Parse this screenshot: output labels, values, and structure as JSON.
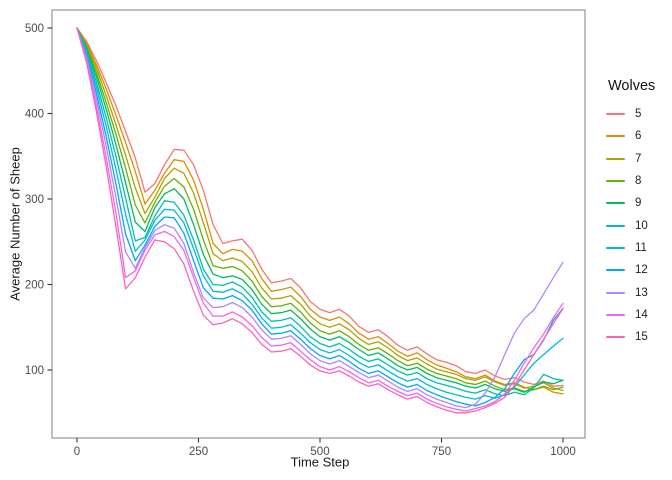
{
  "chart_data": {
    "type": "line",
    "title": "",
    "xlabel": "Time Step",
    "ylabel": "Average Number of Sheep",
    "legend_title": "Wolves",
    "legend_position": "right",
    "grid": false,
    "panel_border": true,
    "xlim": [
      -51,
      1045
    ],
    "ylim": [
      20,
      521
    ],
    "x_ticks": [
      0,
      250,
      500,
      750,
      1000
    ],
    "y_ticks": [
      100,
      200,
      300,
      400,
      500
    ],
    "axis_text_color": "#4c4c4c",
    "axis_title_color": "#1a1a1a",
    "panel_border_color": "#8c8c8c",
    "tick_color": "#333333",
    "x": [
      0,
      20,
      40,
      60,
      80,
      100,
      120,
      140,
      160,
      180,
      200,
      220,
      240,
      260,
      280,
      300,
      320,
      340,
      360,
      380,
      400,
      420,
      440,
      460,
      480,
      500,
      520,
      540,
      560,
      580,
      600,
      620,
      640,
      660,
      680,
      700,
      720,
      740,
      760,
      780,
      800,
      820,
      840,
      860,
      880,
      900,
      920,
      940,
      960,
      980,
      1000
    ],
    "series": [
      {
        "name": "5",
        "color": "#F8766D",
        "values": [
          500,
          484,
          462,
          436,
          409,
          379,
          348,
          308,
          318,
          340,
          358,
          357,
          340,
          310,
          270,
          248,
          251,
          253,
          240,
          218,
          202,
          204,
          207,
          196,
          180,
          171,
          167,
          171,
          163,
          151,
          144,
          147,
          139,
          129,
          123,
          127,
          119,
          112,
          109,
          105,
          98,
          96,
          100,
          93,
          89,
          91,
          86,
          83,
          87,
          81,
          82
        ]
      },
      {
        "name": "6",
        "color": "#DB8E00",
        "values": [
          500,
          482,
          457,
          429,
          398,
          366,
          332,
          294,
          310,
          330,
          346,
          344,
          322,
          288,
          248,
          236,
          241,
          239,
          228,
          207,
          192,
          194,
          197,
          186,
          171,
          162,
          158,
          162,
          154,
          143,
          136,
          139,
          131,
          122,
          116,
          120,
          112,
          106,
          102,
          98,
          92,
          90,
          94,
          87,
          83,
          85,
          80,
          77,
          80,
          74,
          72
        ]
      },
      {
        "name": "7",
        "color": "#AEA200",
        "values": [
          500,
          480,
          453,
          421,
          387,
          351,
          313,
          283,
          302,
          324,
          336,
          330,
          307,
          272,
          236,
          228,
          231,
          227,
          215,
          196,
          183,
          184,
          187,
          177,
          163,
          154,
          150,
          154,
          147,
          137,
          130,
          133,
          126,
          117,
          111,
          114,
          107,
          101,
          98,
          95,
          90,
          88,
          92,
          86,
          82,
          84,
          79,
          81,
          85,
          79,
          76
        ]
      },
      {
        "name": "8",
        "color": "#64B200",
        "values": [
          500,
          478,
          448,
          413,
          376,
          336,
          293,
          272,
          296,
          315,
          324,
          314,
          288,
          252,
          222,
          219,
          221,
          216,
          204,
          186,
          174,
          175,
          178,
          168,
          155,
          146,
          142,
          146,
          139,
          130,
          123,
          126,
          119,
          111,
          105,
          108,
          101,
          96,
          93,
          90,
          85,
          83,
          87,
          81,
          77,
          79,
          75,
          77,
          81,
          77,
          80
        ]
      },
      {
        "name": "9",
        "color": "#00BD5C",
        "values": [
          500,
          476,
          443,
          405,
          364,
          319,
          273,
          262,
          290,
          306,
          312,
          300,
          270,
          235,
          212,
          208,
          210,
          206,
          194,
          177,
          166,
          167,
          170,
          160,
          148,
          139,
          135,
          139,
          132,
          124,
          117,
          120,
          113,
          105,
          100,
          103,
          96,
          91,
          88,
          85,
          81,
          79,
          83,
          78,
          75,
          78,
          74,
          80,
          86,
          84,
          88
        ]
      },
      {
        "name": "10",
        "color": "#00C1A7",
        "values": [
          500,
          474,
          437,
          395,
          350,
          301,
          251,
          255,
          280,
          298,
          296,
          281,
          252,
          218,
          200,
          199,
          203,
          197,
          185,
          168,
          157,
          158,
          161,
          151,
          139,
          131,
          127,
          131,
          124,
          116,
          110,
          113,
          106,
          99,
          94,
          97,
          90,
          85,
          82,
          79,
          75,
          73,
          77,
          72,
          70,
          74,
          71,
          79,
          95,
          90,
          88
        ]
      },
      {
        "name": "11",
        "color": "#00BADE",
        "values": [
          500,
          471,
          431,
          385,
          335,
          282,
          239,
          252,
          275,
          288,
          287,
          272,
          242,
          210,
          192,
          191,
          195,
          189,
          177,
          161,
          149,
          150,
          153,
          143,
          132,
          124,
          120,
          124,
          117,
          109,
          103,
          106,
          99,
          92,
          87,
          90,
          83,
          78,
          74,
          71,
          68,
          66,
          70,
          67,
          71,
          80,
          94,
          108,
          118,
          128,
          137
        ]
      },
      {
        "name": "12",
        "color": "#00A6FF",
        "values": [
          500,
          468,
          424,
          373,
          318,
          259,
          228,
          246,
          268,
          279,
          278,
          260,
          228,
          196,
          184,
          183,
          187,
          181,
          170,
          154,
          142,
          143,
          146,
          136,
          125,
          117,
          113,
          117,
          110,
          102,
          96,
          99,
          92,
          85,
          80,
          83,
          76,
          71,
          67,
          63,
          60,
          58,
          62,
          68,
          78,
          96,
          112,
          118,
          135,
          158,
          172
        ]
      },
      {
        "name": "13",
        "color": "#B385FF",
        "values": [
          500,
          465,
          417,
          362,
          302,
          238,
          219,
          243,
          263,
          270,
          266,
          248,
          214,
          184,
          173,
          174,
          179,
          173,
          162,
          147,
          136,
          137,
          140,
          130,
          119,
          111,
          107,
          111,
          104,
          97,
          91,
          94,
          87,
          80,
          75,
          78,
          71,
          66,
          62,
          58,
          56,
          60,
          73,
          92,
          118,
          143,
          160,
          170,
          189,
          208,
          226
        ]
      },
      {
        "name": "14",
        "color": "#EF67EB",
        "values": [
          500,
          462,
          409,
          349,
          284,
          208,
          216,
          240,
          258,
          262,
          256,
          240,
          208,
          178,
          163,
          163,
          168,
          162,
          152,
          138,
          128,
          129,
          132,
          122,
          112,
          104,
          100,
          104,
          98,
          91,
          85,
          88,
          81,
          75,
          70,
          73,
          66,
          61,
          57,
          54,
          52,
          55,
          58,
          63,
          72,
          88,
          108,
          126,
          142,
          161,
          178
        ]
      },
      {
        "name": "15",
        "color": "#FF63B6",
        "values": [
          500,
          459,
          402,
          338,
          268,
          195,
          208,
          232,
          252,
          250,
          242,
          224,
          192,
          164,
          153,
          155,
          160,
          154,
          144,
          130,
          121,
          122,
          125,
          116,
          106,
          99,
          96,
          99,
          93,
          86,
          81,
          84,
          77,
          71,
          66,
          69,
          62,
          57,
          53,
          50,
          50,
          52,
          56,
          61,
          68,
          82,
          100,
          118,
          136,
          154,
          172
        ]
      }
    ]
  }
}
